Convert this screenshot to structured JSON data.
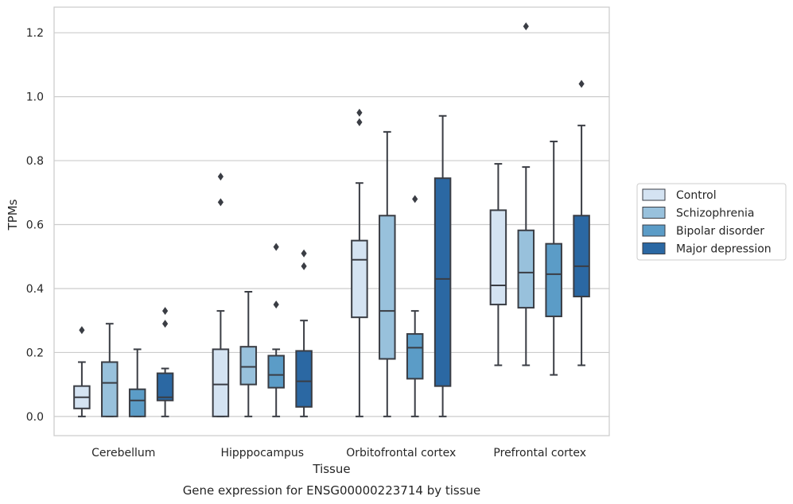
{
  "chart_data": {
    "type": "box",
    "title": "",
    "caption": "Gene expression for ENSG00000223714 by tissue",
    "xlabel": "Tissue",
    "ylabel": "TPMs",
    "ylim": [
      -0.06,
      1.28
    ],
    "yticks": [
      0.0,
      0.2,
      0.4,
      0.6,
      0.8,
      1.0,
      1.2
    ],
    "ytick_labels": [
      "0.0",
      "0.2",
      "0.4",
      "0.6",
      "0.8",
      "1.0",
      "1.2"
    ],
    "grid": "horizontal",
    "legend_position": "right, outside plot",
    "categories": [
      "Cerebellum",
      "Hipppocampus",
      "Orbitofrontal cortex",
      "Prefrontal cortex"
    ],
    "series": [
      {
        "name": "Control",
        "color": "#d4e3f2",
        "boxes": [
          {
            "whislo": 0.0,
            "q1": 0.025,
            "med": 0.06,
            "q3": 0.095,
            "whishi": 0.17,
            "fliers": [
              0.27
            ]
          },
          {
            "whislo": 0.0,
            "q1": 0.0,
            "med": 0.1,
            "q3": 0.21,
            "whishi": 0.33,
            "fliers": [
              0.67,
              0.75
            ]
          },
          {
            "whislo": 0.0,
            "q1": 0.31,
            "med": 0.49,
            "q3": 0.55,
            "whishi": 0.73,
            "fliers": [
              0.92,
              0.95
            ]
          },
          {
            "whislo": 0.16,
            "q1": 0.35,
            "med": 0.41,
            "q3": 0.645,
            "whishi": 0.79,
            "fliers": []
          }
        ]
      },
      {
        "name": "Schizophrenia",
        "color": "#98c1dc",
        "boxes": [
          {
            "whislo": 0.0,
            "q1": 0.0,
            "med": 0.105,
            "q3": 0.17,
            "whishi": 0.29,
            "fliers": []
          },
          {
            "whislo": 0.0,
            "q1": 0.1,
            "med": 0.155,
            "q3": 0.218,
            "whishi": 0.39,
            "fliers": []
          },
          {
            "whislo": 0.0,
            "q1": 0.18,
            "med": 0.33,
            "q3": 0.628,
            "whishi": 0.89,
            "fliers": []
          },
          {
            "whislo": 0.16,
            "q1": 0.34,
            "med": 0.45,
            "q3": 0.582,
            "whishi": 0.78,
            "fliers": [
              1.22
            ]
          }
        ]
      },
      {
        "name": "Bipolar disorder",
        "color": "#5b9cc7",
        "boxes": [
          {
            "whislo": 0.0,
            "q1": 0.0,
            "med": 0.05,
            "q3": 0.085,
            "whishi": 0.21,
            "fliers": []
          },
          {
            "whislo": 0.0,
            "q1": 0.09,
            "med": 0.13,
            "q3": 0.19,
            "whishi": 0.21,
            "fliers": [
              0.35,
              0.53
            ]
          },
          {
            "whislo": 0.0,
            "q1": 0.118,
            "med": 0.215,
            "q3": 0.258,
            "whishi": 0.33,
            "fliers": [
              0.68
            ]
          },
          {
            "whislo": 0.13,
            "q1": 0.313,
            "med": 0.445,
            "q3": 0.54,
            "whishi": 0.86,
            "fliers": []
          }
        ]
      },
      {
        "name": "Major depression",
        "color": "#2b68a3",
        "boxes": [
          {
            "whislo": 0.0,
            "q1": 0.05,
            "med": 0.06,
            "q3": 0.135,
            "whishi": 0.15,
            "fliers": [
              0.29,
              0.33
            ]
          },
          {
            "whislo": 0.0,
            "q1": 0.03,
            "med": 0.11,
            "q3": 0.205,
            "whishi": 0.3,
            "fliers": [
              0.47,
              0.51
            ]
          },
          {
            "whislo": 0.0,
            "q1": 0.095,
            "med": 0.43,
            "q3": 0.745,
            "whishi": 0.94,
            "fliers": []
          },
          {
            "whislo": 0.16,
            "q1": 0.375,
            "med": 0.47,
            "q3": 0.628,
            "whishi": 0.91,
            "fliers": [
              1.04
            ]
          }
        ]
      }
    ]
  }
}
